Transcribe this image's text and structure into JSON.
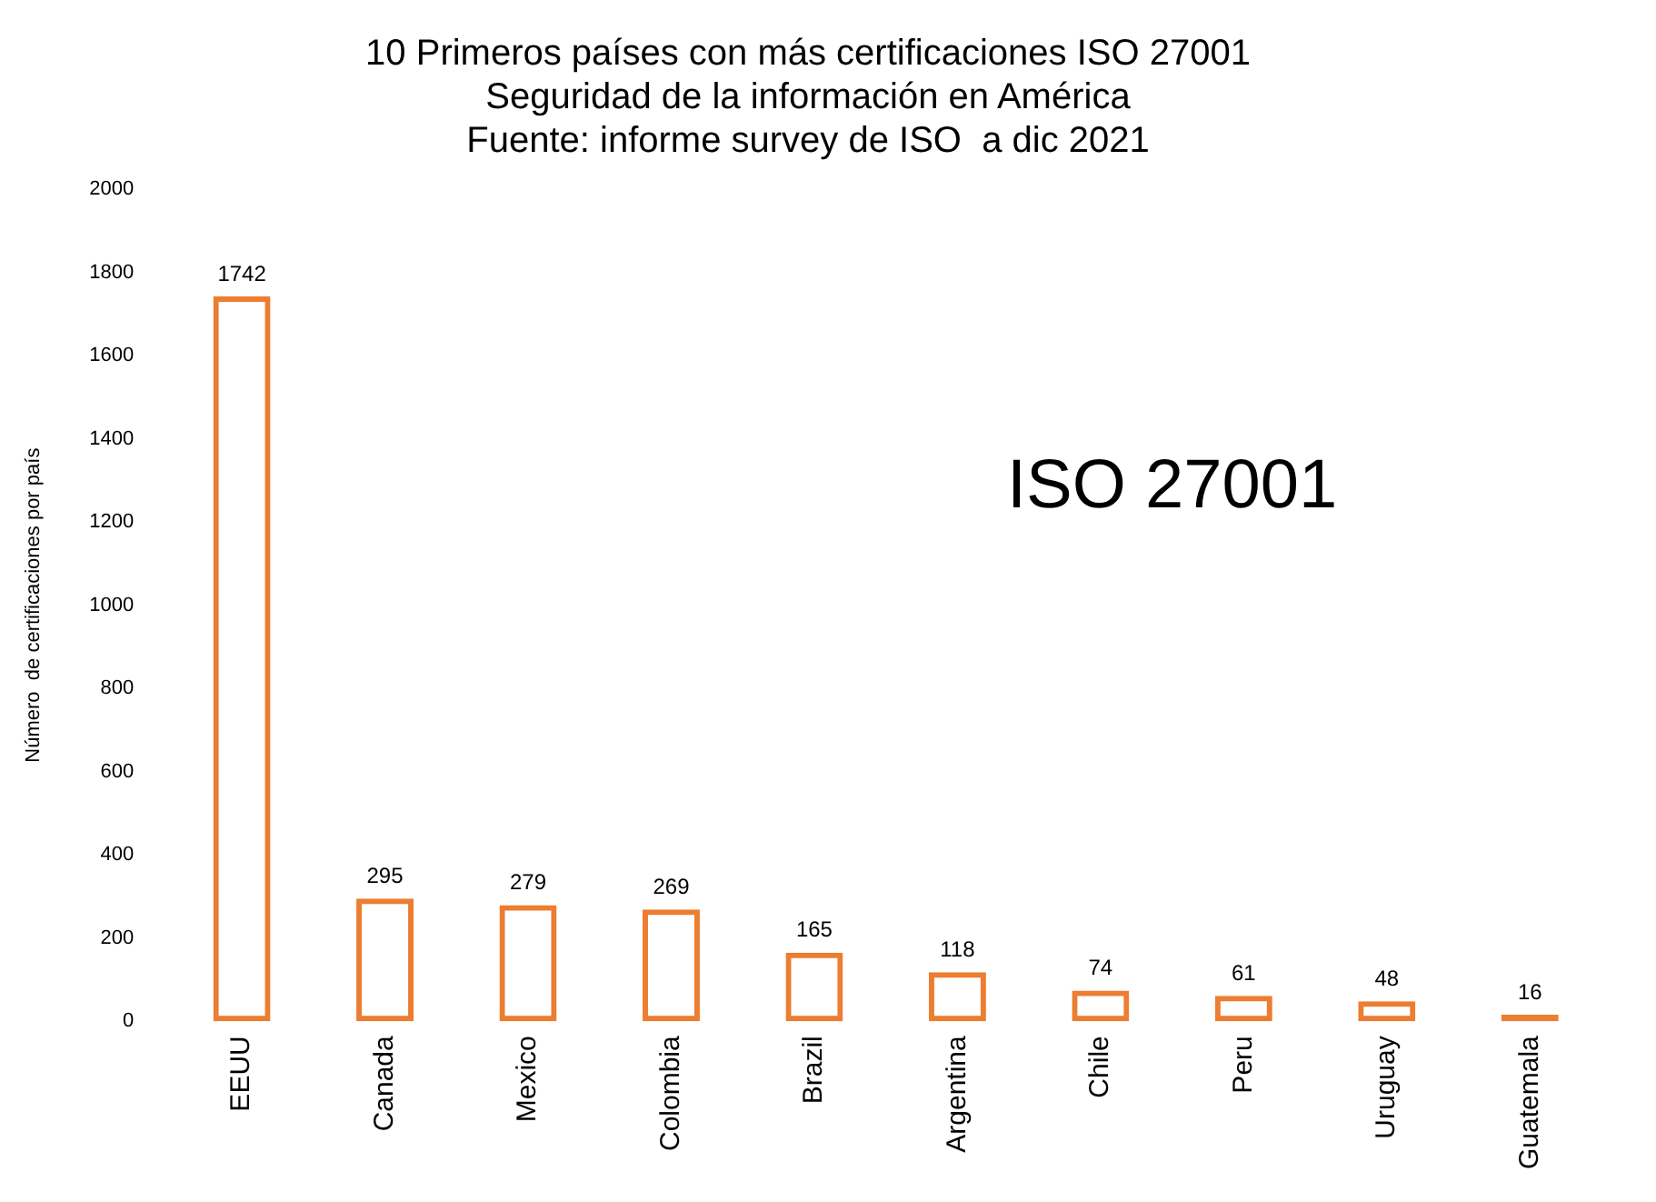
{
  "chart_data": {
    "type": "bar",
    "title": "10 Primeros países con más certificaciones ISO 27001\nSeguridad de la información en América\nFuente: informe survey de ISO  a dic 2021",
    "ylabel": "Número  de certificaciones por país",
    "categories": [
      "EEUU",
      "Canada",
      "Mexico",
      "Colombia",
      "Brazil",
      "Argentina",
      "Chile",
      "Peru",
      "Uruguay",
      "Guatemala"
    ],
    "values": [
      1742,
      295,
      279,
      269,
      165,
      118,
      74,
      61,
      48,
      16
    ],
    "color": "#ed7d31",
    "ylim": [
      0,
      2000
    ],
    "yticks": [
      0,
      200,
      400,
      600,
      800,
      1000,
      1200,
      1400,
      1600,
      1800,
      2000
    ],
    "data_labels": true,
    "grid": false,
    "legend": false,
    "annotations": [
      "ISO 27001"
    ]
  }
}
